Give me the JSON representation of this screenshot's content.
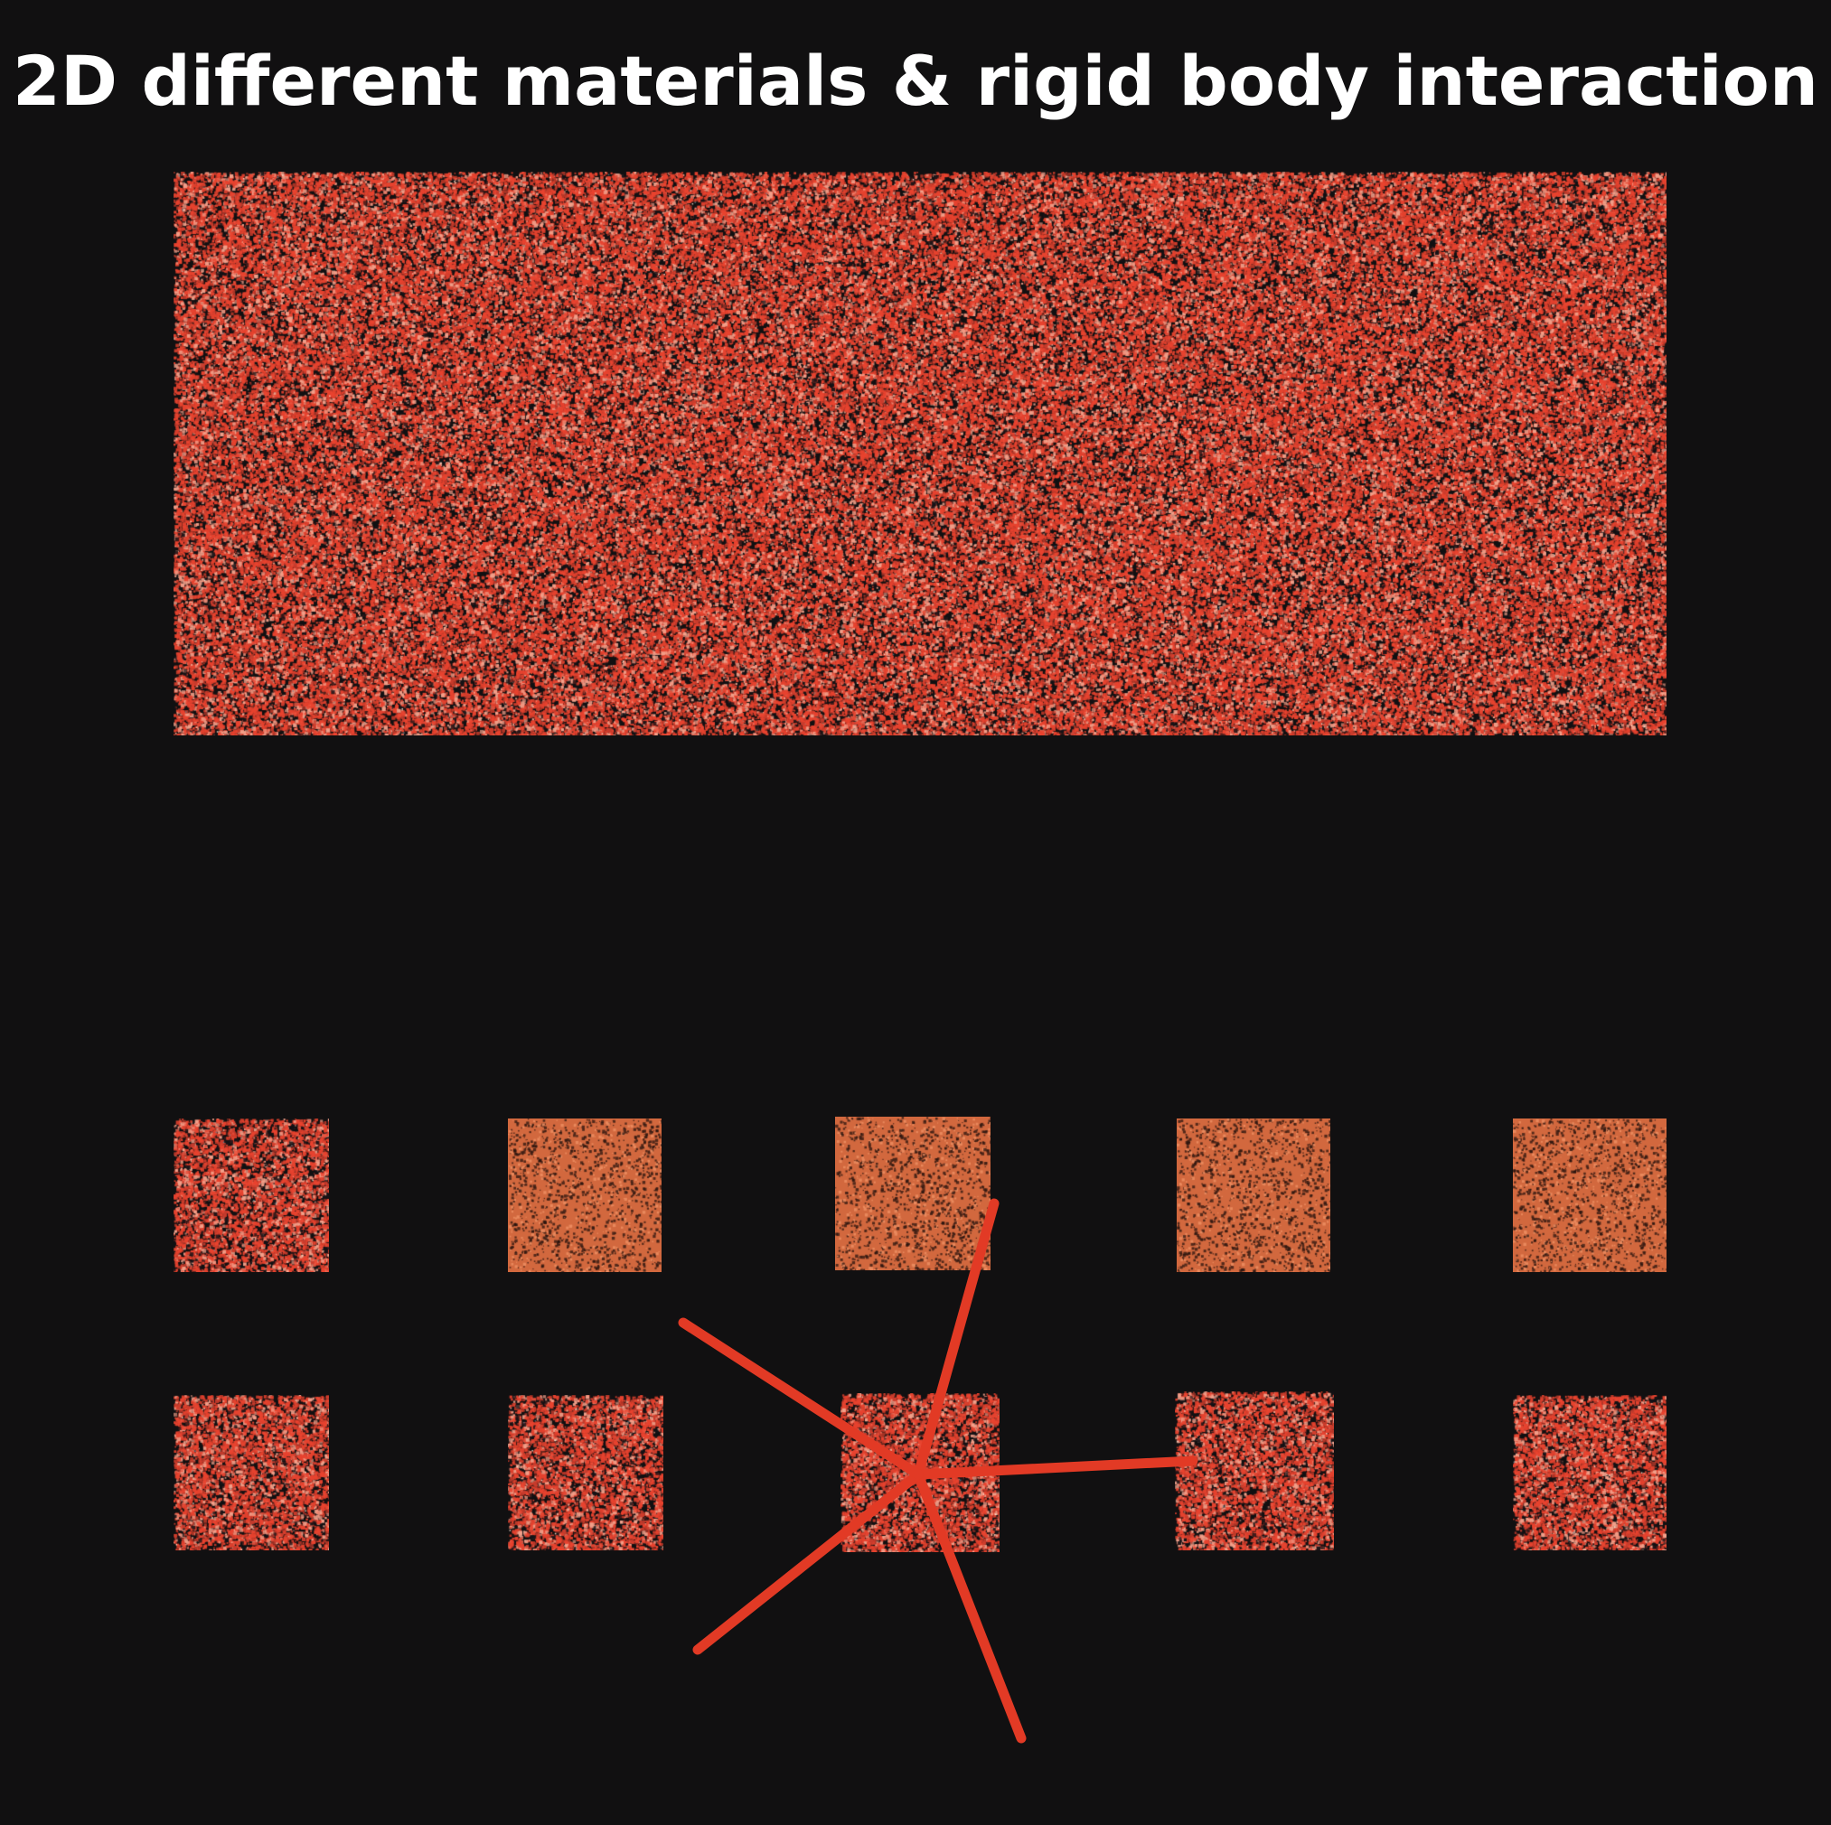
{
  "title": "2D different materials & rigid body interaction",
  "colors": {
    "background": "#111011",
    "title_text": "#ffffff",
    "particle_red": "#e8432f",
    "particle_light": "#f2a08a",
    "particle_orange": "#d2683e",
    "rigid_body": "#e23a25"
  }
}
